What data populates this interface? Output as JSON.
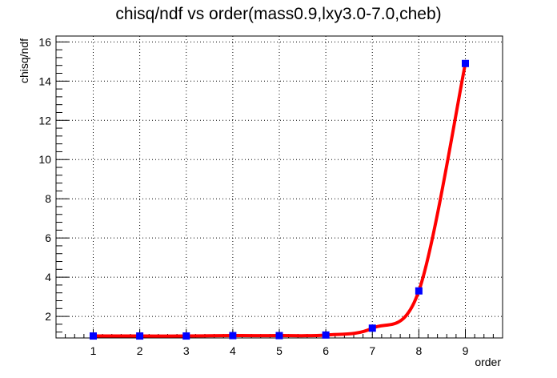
{
  "chart_data": {
    "type": "line",
    "title": "chisq/ndf vs order(mass0.9,lxy3.0-7.0,cheb)",
    "xlabel": "order",
    "ylabel": "chisq/ndf",
    "xlim": [
      0.2,
      9.8
    ],
    "ylim": [
      0.9,
      16.3
    ],
    "x_ticks": [
      1,
      2,
      3,
      4,
      5,
      6,
      7,
      8,
      9
    ],
    "y_ticks": [
      2,
      4,
      6,
      8,
      10,
      12,
      14,
      16
    ],
    "grid": true,
    "legend": "none",
    "series": [
      {
        "x": [
          1,
          2,
          3,
          4,
          5,
          6,
          7,
          8,
          9
        ],
        "y": [
          1.0,
          1.0,
          1.0,
          1.02,
          1.02,
          1.05,
          1.4,
          3.3,
          14.9
        ],
        "marker": "square",
        "marker_color": "#0000ff",
        "line_color": "#ff0000"
      }
    ]
  }
}
